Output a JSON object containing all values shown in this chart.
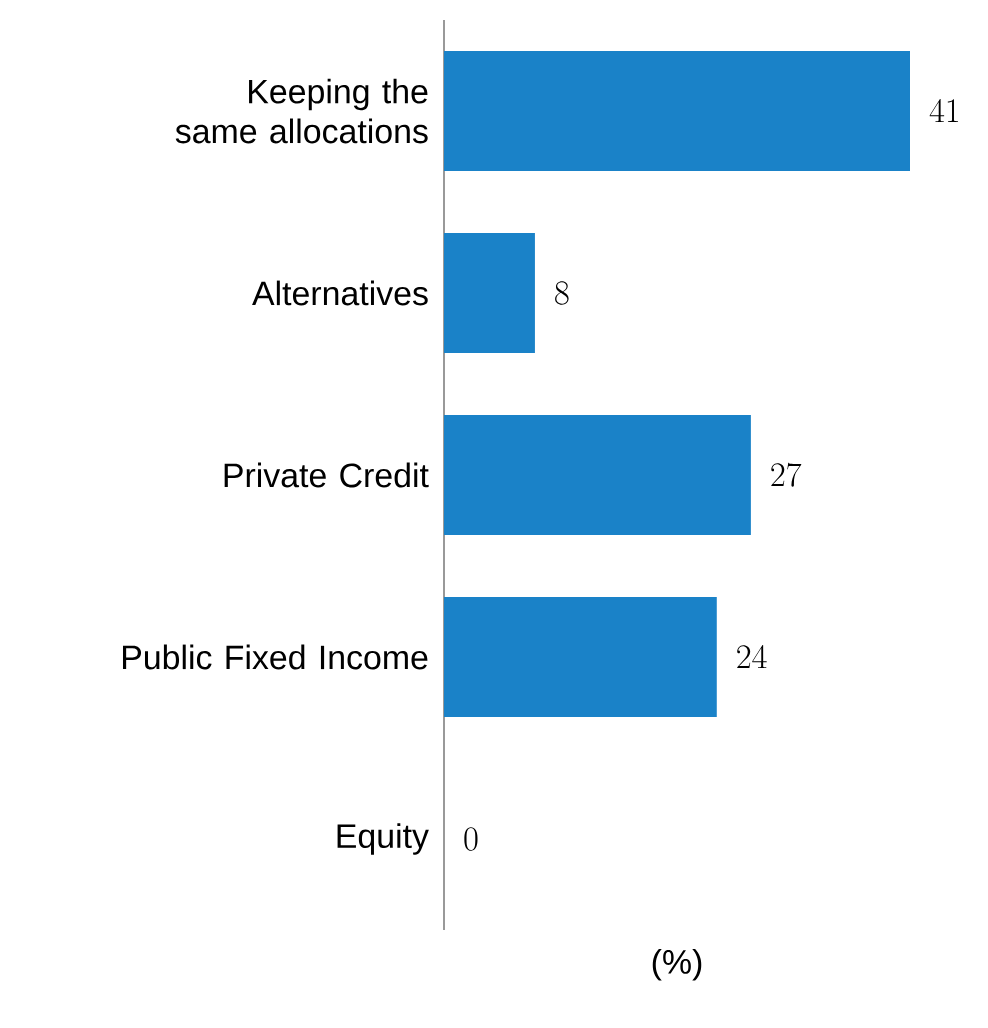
{
  "chart_data": {
    "type": "bar",
    "orientation": "horizontal",
    "xlabel": "(%)",
    "categories": [
      "Keeping the same allocations",
      "Alternatives",
      "Private Credit",
      "Public Fixed Income",
      "Equity"
    ],
    "values": [
      41,
      8,
      27,
      24,
      0
    ],
    "color": "#1a82c8",
    "data_labels": true
  }
}
